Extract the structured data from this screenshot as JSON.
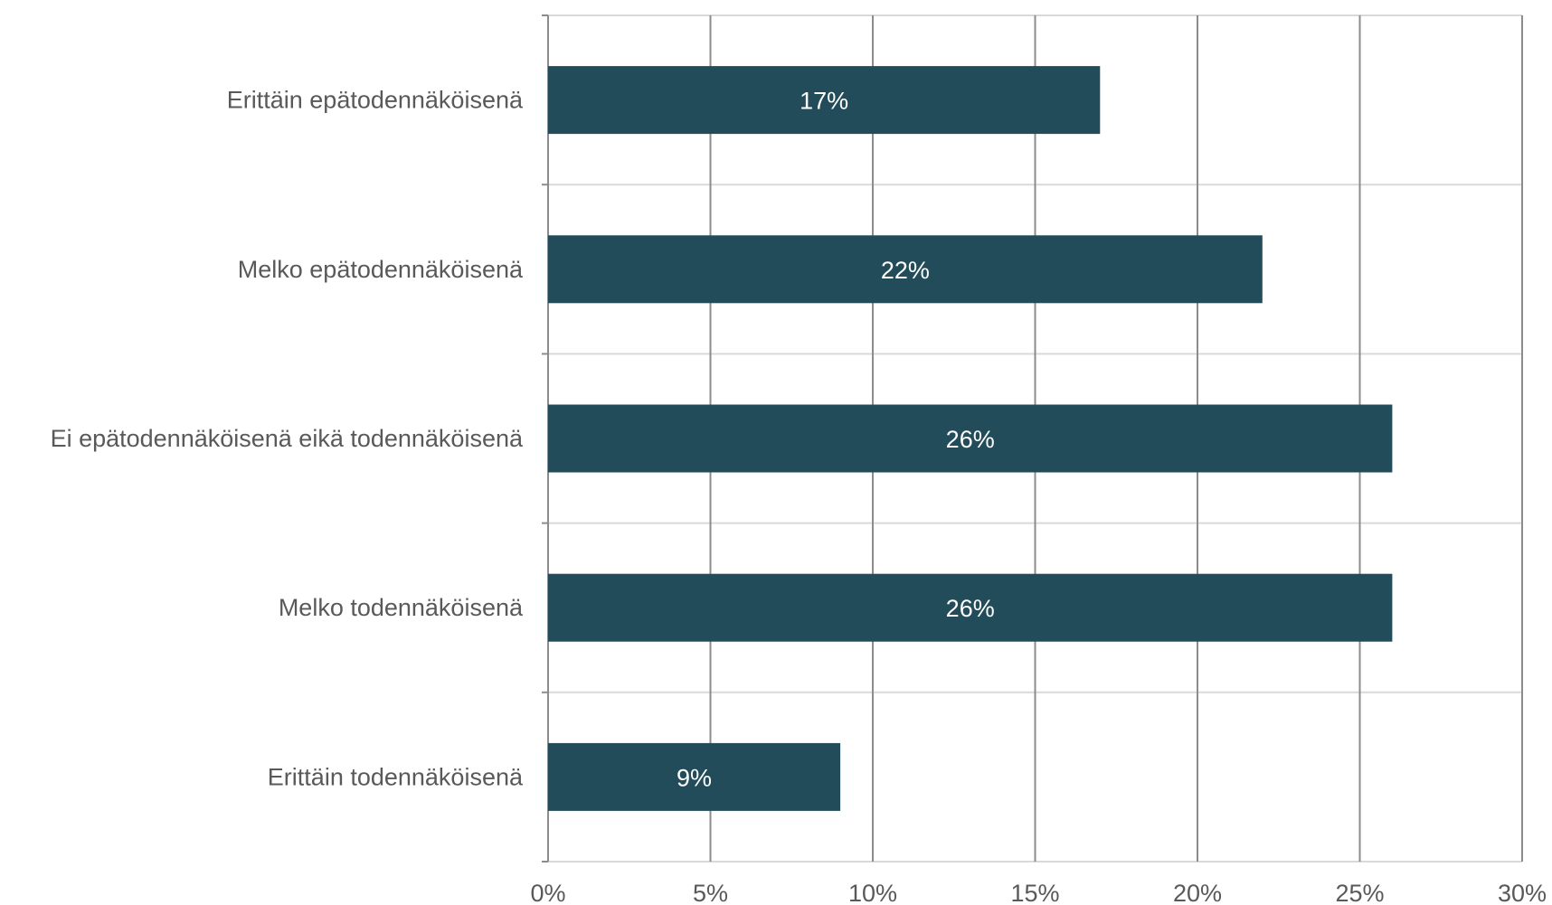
{
  "chart_data": {
    "type": "bar",
    "orientation": "horizontal",
    "categories": [
      "Erittäin epätodennäköisenä",
      "Melko epätodennäköisenä",
      "Ei epätodennäköisenä eikä todennäköisenä",
      "Melko todennäköisenä",
      "Erittäin todennäköisenä"
    ],
    "values": [
      17,
      22,
      26,
      26,
      9
    ],
    "data_labels": [
      "17%",
      "22%",
      "26%",
      "26%",
      "9%"
    ],
    "x_ticks": [
      0,
      5,
      10,
      15,
      20,
      25,
      30
    ],
    "x_tick_labels": [
      "0%",
      "5%",
      "10%",
      "15%",
      "20%",
      "25%",
      "30%"
    ],
    "xlim": [
      0,
      30
    ],
    "grid": {
      "vertical": true,
      "horizontal": true
    },
    "legend": "none",
    "colors": {
      "bar": "#234c5a",
      "grid_vertical": "#8c8c8c",
      "grid_horizontal": "#d9d9d9",
      "axis": "#8c8c8c",
      "label_text": "#595959",
      "data_label_text": "#ffffff"
    }
  }
}
